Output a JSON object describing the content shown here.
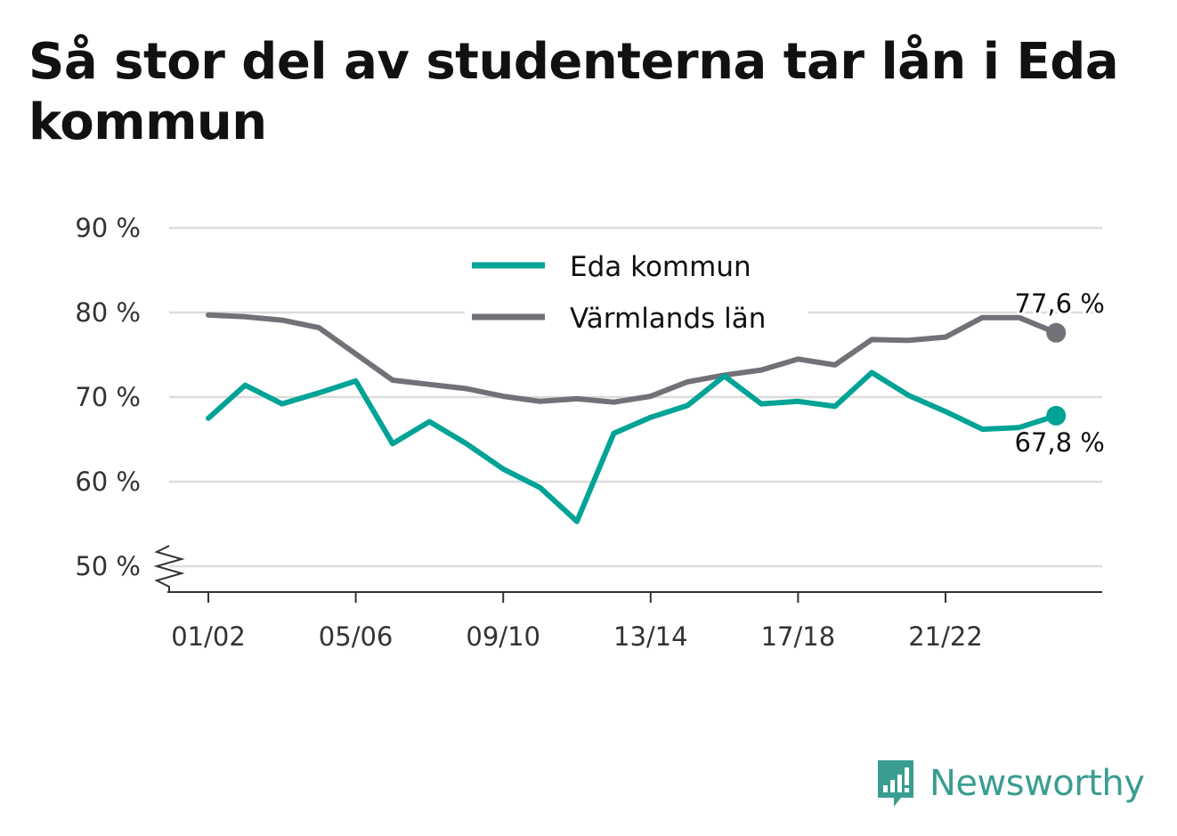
{
  "chart_data": {
    "type": "line",
    "title": "Så stor del av studenterna tar lån i Eda kommun",
    "xlabel": "",
    "ylabel": "",
    "ylim": [
      47,
      90
    ],
    "yticks": [
      50,
      60,
      70,
      80,
      90
    ],
    "ytick_labels": [
      "50 %",
      "60 %",
      "70 %",
      "80 %",
      "90 %"
    ],
    "axis_break": true,
    "x": [
      "01/02",
      "02/03",
      "03/04",
      "04/05",
      "05/06",
      "06/07",
      "07/08",
      "08/09",
      "09/10",
      "10/11",
      "11/12",
      "12/13",
      "13/14",
      "14/15",
      "15/16",
      "16/17",
      "17/18",
      "18/19",
      "19/20",
      "20/21",
      "21/22",
      "22/23",
      "23/24",
      "24/25"
    ],
    "xtick_labels": [
      "01/02",
      "05/06",
      "09/10",
      "13/14",
      "17/18",
      "21/22"
    ],
    "grid": true,
    "legend_position": "top-center",
    "series": [
      {
        "name": "Eda kommun",
        "color": "#00a396",
        "values": [
          67.5,
          71.4,
          69.2,
          70.5,
          71.9,
          64.5,
          67.1,
          64.5,
          61.5,
          59.3,
          55.3,
          65.7,
          67.6,
          69.0,
          72.5,
          69.2,
          69.5,
          68.9,
          72.9,
          70.2,
          68.3,
          66.2,
          66.4,
          67.8
        ],
        "end_label": "67,8 %"
      },
      {
        "name": "Värmlands län",
        "color": "#727177",
        "values": [
          79.7,
          79.5,
          79.1,
          78.2,
          75.1,
          72.0,
          71.5,
          71.0,
          70.1,
          69.5,
          69.8,
          69.4,
          70.1,
          71.8,
          72.6,
          73.2,
          74.5,
          73.8,
          76.8,
          76.7,
          77.1,
          79.4,
          79.4,
          77.6
        ],
        "end_label": "77,6 %"
      }
    ]
  },
  "brand": {
    "name": "Newsworthy",
    "logo_icon": "bar-chart-speech-bubble-icon",
    "color": "#3a9d91"
  }
}
